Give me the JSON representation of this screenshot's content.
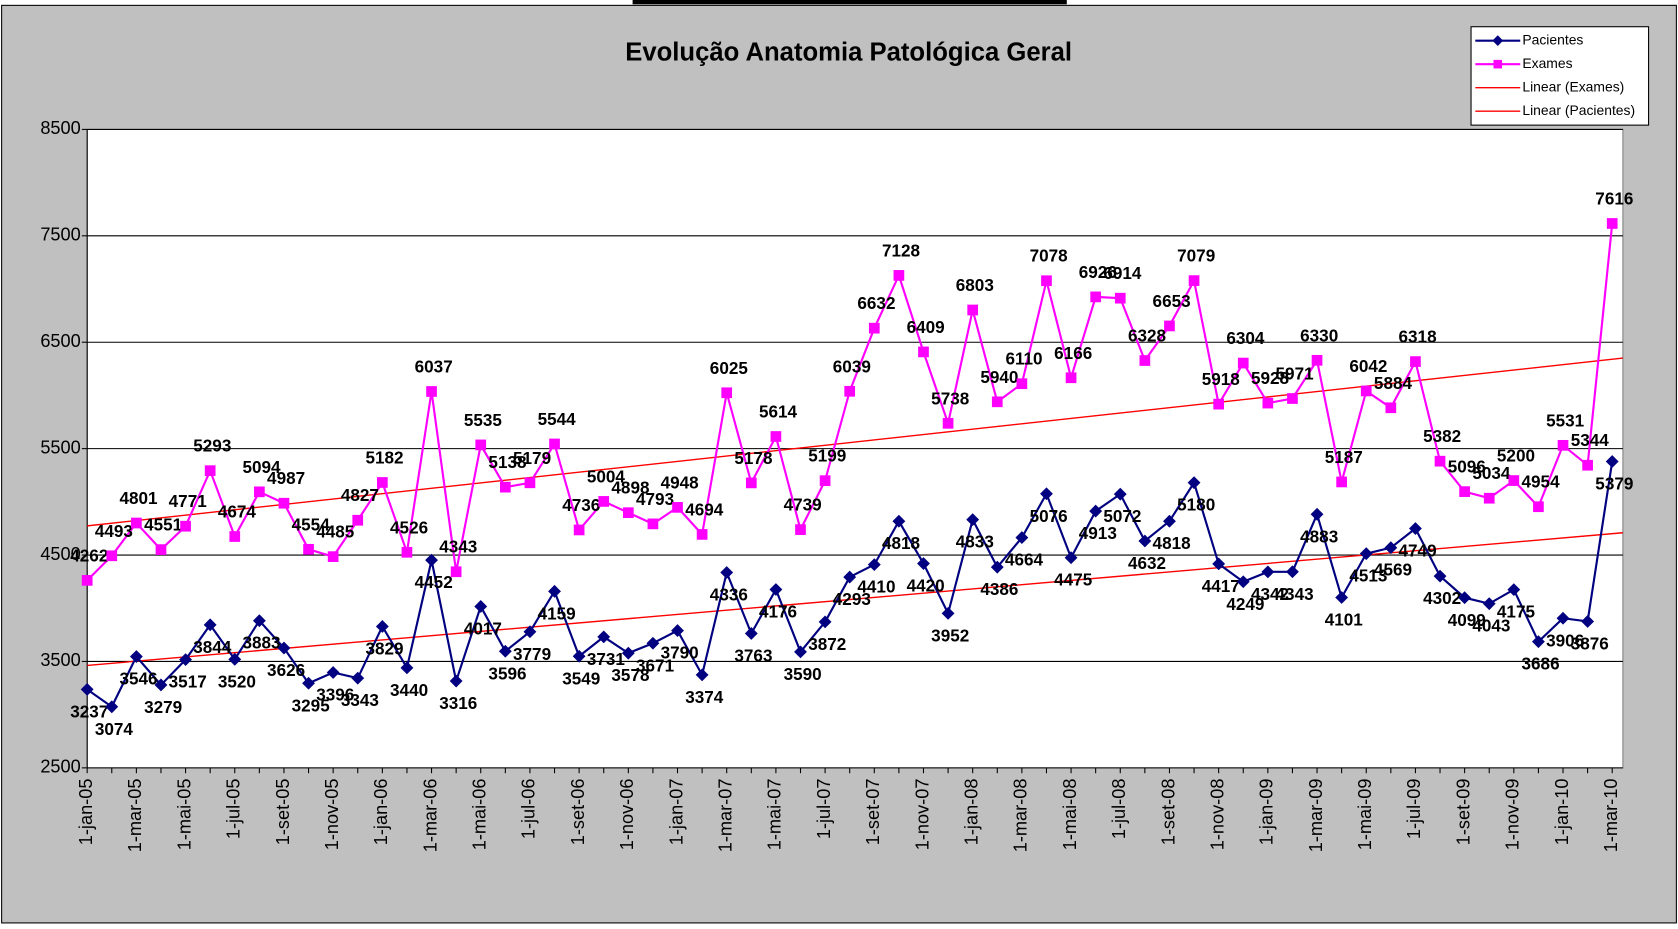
{
  "chart_data": {
    "type": "line",
    "title": "Evolução Anatomia Patológica Geral",
    "categories": [
      "1-jan-05",
      null,
      "1-mar-05",
      null,
      "1-mai-05",
      null,
      "1-jul-05",
      null,
      "1-set-05",
      null,
      "1-nov-05",
      null,
      "1-jan-06",
      null,
      "1-mar-06",
      null,
      "1-mai-06",
      null,
      "1-jul-06",
      null,
      "1-set-06",
      null,
      "1-nov-06",
      null,
      "1-jan-07",
      null,
      "1-mar-07",
      null,
      "1-mai-07",
      null,
      "1-jul-07",
      null,
      "1-set-07",
      null,
      "1-nov-07",
      null,
      "1-jan-08",
      null,
      "1-mar-08",
      null,
      "1-mai-08",
      null,
      "1-jul-08",
      null,
      "1-set-08",
      null,
      "1-nov-08",
      null,
      "1-jan-09",
      null,
      "1-mar-09",
      null,
      "1-mai-09",
      null,
      "1-jul-09",
      null,
      "1-set-09",
      null,
      "1-nov-09",
      null,
      "1-jan-10",
      null,
      "1-mar-10"
    ],
    "series": [
      {
        "name": "Pacientes",
        "color": "#000080",
        "marker": "diamond",
        "values": [
          3237,
          3074,
          3546,
          3279,
          3517,
          3844,
          3520,
          3883,
          3626,
          3295,
          3396,
          3343,
          3829,
          3440,
          4452,
          3316,
          4017,
          3596,
          3779,
          4159,
          3549,
          3731,
          3578,
          3671,
          3790,
          3374,
          4336,
          3763,
          4176,
          3590,
          3872,
          4293,
          4410,
          4818,
          4420,
          3952,
          4833,
          4386,
          4664,
          5076,
          4475,
          4913,
          5072,
          4632,
          4818,
          5180,
          4417,
          4249,
          4342,
          4343,
          4883,
          4101,
          4513,
          4569,
          4749,
          4302,
          4099,
          4043,
          4175,
          3686,
          3906,
          3876,
          5379
        ]
      },
      {
        "name": "Exames",
        "color": "#ff00ff",
        "marker": "square",
        "values": [
          4262,
          4493,
          4801,
          4551,
          4771,
          5293,
          4674,
          5094,
          4987,
          4554,
          4485,
          4827,
          5182,
          4526,
          6037,
          4343,
          5535,
          5138,
          5179,
          5544,
          4736,
          5004,
          4898,
          4793,
          4948,
          4694,
          6025,
          5178,
          5614,
          4739,
          5199,
          6039,
          6632,
          7128,
          6409,
          5738,
          6803,
          5940,
          6110,
          7078,
          6166,
          6926,
          6914,
          6328,
          6653,
          7079,
          5918,
          6304,
          5928,
          5971,
          6330,
          5187,
          6042,
          5884,
          6318,
          5382,
          5096,
          5034,
          5200,
          4954,
          5531,
          5344,
          7616
        ]
      }
    ],
    "trendlines": [
      {
        "name": "Linear (Exames)",
        "color": "#ff0000",
        "series": "Exames"
      },
      {
        "name": "Linear (Pacientes)",
        "color": "#ff0000",
        "series": "Pacientes"
      }
    ],
    "ylim": [
      2500,
      8500
    ],
    "yticks": [
      2500,
      3500,
      4500,
      5500,
      6500,
      7500,
      8500
    ],
    "grid": true,
    "legend": "top-right"
  }
}
